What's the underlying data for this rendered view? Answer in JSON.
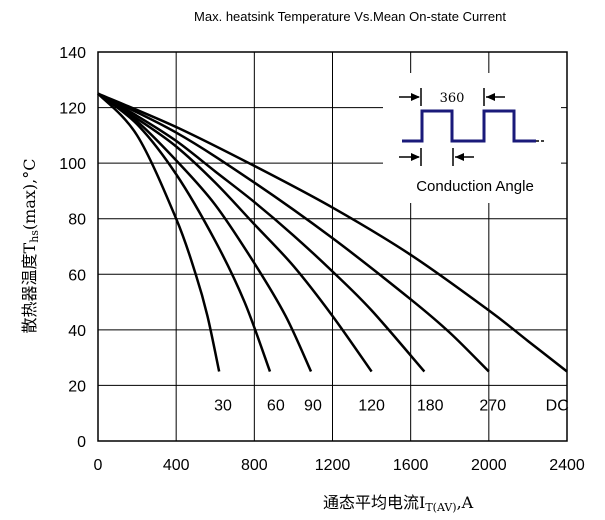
{
  "chart_data": {
    "type": "line",
    "title": "Max. heatsink Temperature Vs.Mean On-state Current",
    "xlabel": {
      "main": "通态平均电流I",
      "sub": "T(AV)",
      "suffix": ",A"
    },
    "ylabel": {
      "main": "散热器温度T",
      "sub": "hs",
      "suffix": "(max),°C"
    },
    "xlim": [
      0,
      2400
    ],
    "ylim": [
      0,
      140
    ],
    "xticks": [
      "0",
      "400",
      "800",
      "1200",
      "1600",
      "2000",
      "2400"
    ],
    "yticks": [
      "0",
      "20",
      "40",
      "60",
      "80",
      "100",
      "120",
      "140"
    ],
    "grid": true,
    "series": [
      {
        "name": "30",
        "x": [
          0,
          200,
          400,
          500,
          560,
          620
        ],
        "y": [
          125,
          110,
          80,
          60,
          45,
          25
        ]
      },
      {
        "name": "60",
        "x": [
          0,
          200,
          400,
          600,
          750,
          880
        ],
        "y": [
          125,
          114,
          96,
          72,
          50,
          25
        ]
      },
      {
        "name": "90",
        "x": [
          0,
          200,
          400,
          600,
          800,
          960,
          1090
        ],
        "y": [
          125,
          115,
          101,
          85,
          64,
          45,
          25
        ]
      },
      {
        "name": "120",
        "x": [
          0,
          200,
          400,
          600,
          800,
          1000,
          1200,
          1400
        ],
        "y": [
          125,
          116,
          106,
          93,
          78,
          63,
          45,
          25
        ]
      },
      {
        "name": "180",
        "x": [
          0,
          200,
          400,
          600,
          800,
          1000,
          1200,
          1400,
          1670
        ],
        "y": [
          125,
          117,
          108,
          97,
          86,
          74,
          61,
          47,
          25
        ]
      },
      {
        "name": "270",
        "x": [
          0,
          400,
          800,
          1200,
          1600,
          1800,
          2000
        ],
        "y": [
          125,
          111,
          93,
          73,
          51,
          39,
          25
        ]
      },
      {
        "name": "DC",
        "x": [
          0,
          400,
          800,
          1200,
          1600,
          2000,
          2200,
          2400
        ],
        "y": [
          125,
          113,
          99,
          84,
          67,
          47,
          36,
          25
        ]
      }
    ],
    "labels": [
      {
        "text": "30",
        "x": 640,
        "y": 11
      },
      {
        "text": "60",
        "x": 910,
        "y": 11
      },
      {
        "text": "90",
        "x": 1100,
        "y": 11
      },
      {
        "text": "120",
        "x": 1400,
        "y": 11
      },
      {
        "text": "180",
        "x": 1700,
        "y": 11
      },
      {
        "text": "270",
        "x": 2020,
        "y": 11
      },
      {
        "text": "DC",
        "x": 2350,
        "y": 11
      }
    ],
    "inset": {
      "angle_label": "360",
      "caption": "Conduction Angle",
      "waveform_color": "#1a1a7a"
    }
  }
}
